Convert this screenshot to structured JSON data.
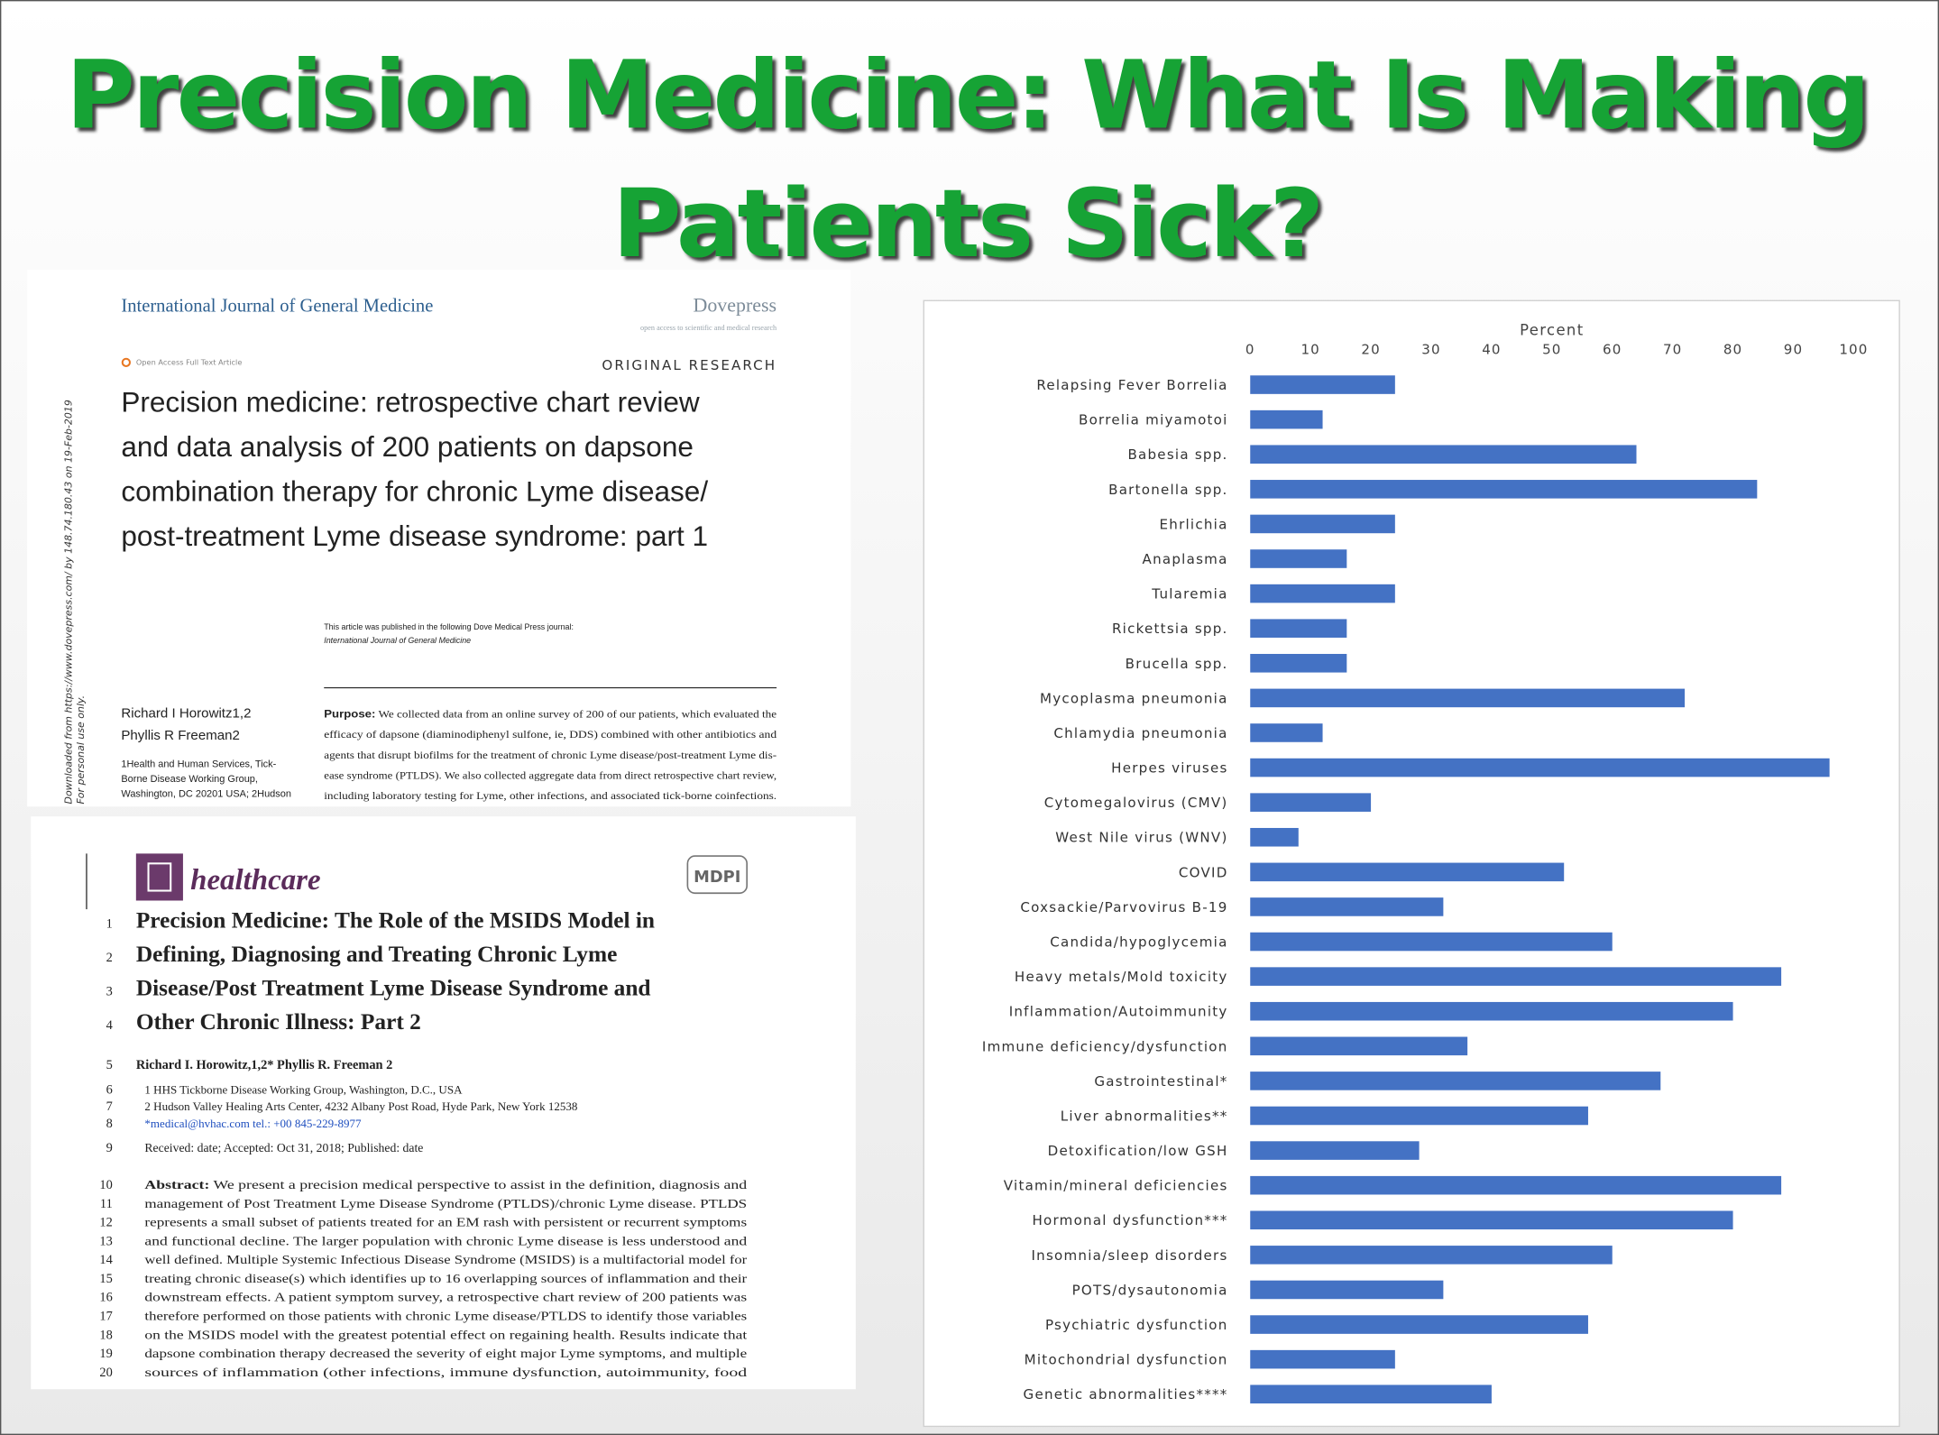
{
  "slide_title_lines": [
    "Precision Medicine: What Is Making",
    "Patients Sick?"
  ],
  "article_1": {
    "journal": "International Journal of General Medicine",
    "publisher": "Dovepress",
    "publisher_tagline": "open access to scientific and medical research",
    "access_note": "Open Access Full Text Article",
    "article_type": "ORIGINAL RESEARCH",
    "title_lines": [
      "Precision medicine: retrospective chart review",
      "and data analysis of 200 patients on dapsone",
      "combination therapy for chronic Lyme disease/",
      "post-treatment Lyme disease syndrome: part 1"
    ],
    "published_note": "This article was published in the following Dove Medical Press journal:",
    "published_journal": "International Journal of General Medicine",
    "authors": [
      "Richard I Horowitz1,2",
      "Phyllis R Freeman2"
    ],
    "affiliation_lines": [
      "1Health and Human Services, Tick-",
      "Borne Disease Working Group,",
      "Washington, DC 20201 USA; 2Hudson"
    ],
    "purpose_label": "Purpose:",
    "purpose_lines": [
      " We collected data from an online survey of 200 of our patients, which evaluated the",
      "efficacy of dapsone (diaminodiphenyl sulfone, ie, DDS) combined with other antibiotics and",
      "agents that disrupt biofilms for the treatment of chronic Lyme disease/post-treatment Lyme dis-",
      "ease syndrome (PTLDS). We also collected aggregate data from direct retrospective chart review,",
      "including laboratory testing for Lyme, other infections, and associated tick-borne coinfections."
    ],
    "download_note": "Downloaded from https://www.dovepress.com/ by 148.74.180.43 on 19-Feb-2019",
    "personal_use_note": "For personal use only."
  },
  "article_2": {
    "journal": "healthcare",
    "publisher": "MDPI",
    "title_lines": [
      {
        "number": 1,
        "text": "Precision Medicine: The Role of the MSIDS Model in"
      },
      {
        "number": 2,
        "text": "Defining, Diagnosing and Treating Chronic Lyme"
      },
      {
        "number": 3,
        "text": "Disease/Post Treatment Lyme Disease Syndrome and"
      },
      {
        "number": 4,
        "text": "Other Chronic Illness: Part 2"
      }
    ],
    "author_line": {
      "number": 5,
      "text": "Richard I. Horowitz,1,2* Phyllis R. Freeman 2"
    },
    "affiliation_lines": [
      {
        "number": 6,
        "text": "1 HHS Tickborne Disease Working Group, Washington, D.C., USA"
      },
      {
        "number": 7,
        "text": "2 Hudson Valley Healing Arts Center, 4232 Albany Post Road, Hyde Park, New York 12538"
      },
      {
        "number": 8,
        "text": "*medical@hvhac.com tel.: +00 845-229-8977"
      }
    ],
    "dates_line": {
      "number": 9,
      "text": "Received: date; Accepted: Oct 31, 2018; Published: date"
    },
    "abstract_label": "Abstract:",
    "abstract_lines": [
      {
        "number": 10,
        "text": " We present a precision medical perspective to assist in the definition, diagnosis and"
      },
      {
        "number": 11,
        "text": "management of Post Treatment Lyme Disease Syndrome (PTLDS)/chronic Lyme disease. PTLDS"
      },
      {
        "number": 12,
        "text": "represents a small subset of patients treated for an EM rash with persistent or recurrent symptoms"
      },
      {
        "number": 13,
        "text": "and functional decline. The larger population with chronic Lyme disease is less understood and"
      },
      {
        "number": 14,
        "text": "well defined. Multiple Systemic Infectious Disease Syndrome (MSIDS) is a multifactorial model for"
      },
      {
        "number": 15,
        "text": "treating chronic disease(s) which identifies up to 16 overlapping sources of inflammation and their"
      },
      {
        "number": 16,
        "text": "downstream effects. A patient symptom survey, a retrospective chart review of 200 patients was"
      },
      {
        "number": 17,
        "text": "therefore performed on those patients with chronic Lyme disease/PTLDS to identify those variables"
      },
      {
        "number": 18,
        "text": "on the MSIDS model with the greatest potential effect on regaining health. Results indicate that"
      },
      {
        "number": 19,
        "text": "dapsone combination therapy decreased the severity of eight major Lyme symptoms, and multiple"
      },
      {
        "number": 20,
        "text": "sources of inflammation (other infections, immune dysfunction, autoimmunity, food"
      }
    ]
  },
  "chart_data": {
    "type": "barh",
    "x_label": "Percent",
    "categories": [
      "Relapsing Fever Borrelia",
      "Borrelia miyamotoi",
      "Babesia spp.",
      "Bartonella spp.",
      "Ehrlichia",
      "Anaplasma",
      "Tularemia",
      "Rickettsia spp.",
      "Brucella spp.",
      "Mycoplasma pneumonia",
      "Chlamydia pneumonia",
      "Herpes viruses",
      "Cytomegalovirus (CMV)",
      "West Nile virus (WNV)",
      "COVID",
      "Coxsackie/Parvovirus B-19",
      "Candida/hypoglycemia",
      "Heavy metals/Mold toxicity",
      "Inflammation/Autoimmunity",
      "Immune deficiency/dysfunction",
      "Gastrointestinal*",
      "Liver abnormalities**",
      "Detoxification/low GSH",
      "Vitamin/mineral deficiencies",
      "Hormonal dysfunction***",
      "Insomnia/sleep disorders",
      "POTS/dysautonomia",
      "Psychiatric dysfunction",
      "Mitochondrial dysfunction",
      "Genetic abnormalities****"
    ],
    "values": [
      24,
      12,
      64,
      84,
      24,
      16,
      24,
      16,
      16,
      72,
      12,
      96,
      20,
      8,
      52,
      32,
      60,
      88,
      80,
      36,
      68,
      56,
      28,
      88,
      80,
      60,
      32,
      56,
      24,
      40
    ],
    "color": "#4472c4",
    "xlim": [
      0,
      100
    ],
    "xticks": [
      0,
      10,
      20,
      30,
      40,
      50,
      60,
      70,
      80,
      90,
      100
    ],
    "x_axis_position": "top",
    "grid": false
  }
}
